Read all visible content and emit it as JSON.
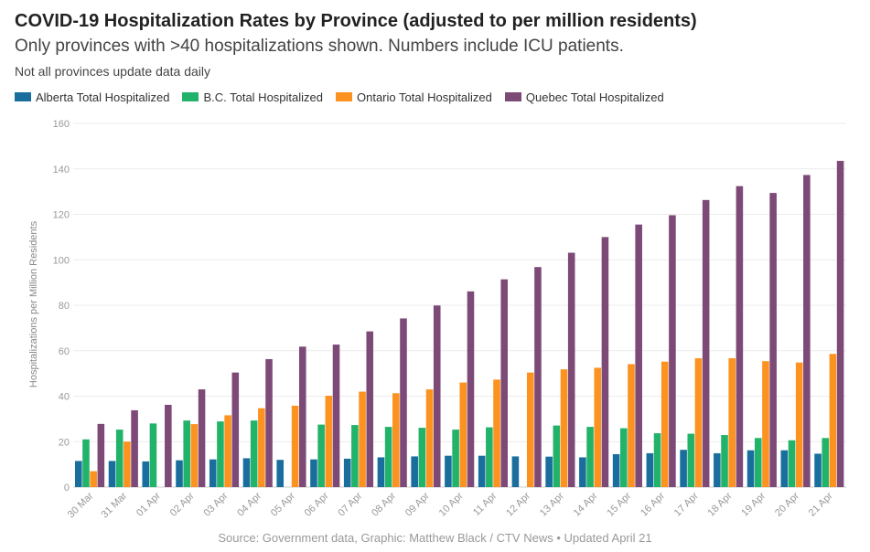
{
  "chart_data": {
    "type": "bar",
    "title": "COVID-19 Hospitalization Rates by Province (adjusted to per million residents)",
    "subtitle": "Only provinces with >40 hospitalizations shown. Numbers include ICU patients.",
    "note": "Not all provinces update data daily",
    "source": "Source: Government data, Graphic: Matthew Black / CTV News • Updated April 21",
    "xlabel": "",
    "ylabel": "Hospitalizations per Million Residents",
    "ylim": [
      0,
      160
    ],
    "yticks": [
      0,
      20,
      40,
      60,
      80,
      100,
      120,
      140,
      160
    ],
    "grid": true,
    "legend_position": "top-left",
    "categories": [
      "30 Mar",
      "31 Mar",
      "01 Apr",
      "02 Apr",
      "03 Apr",
      "04 Apr",
      "05 Apr",
      "06 Apr",
      "07 Apr",
      "08 Apr",
      "09 Apr",
      "10 Apr",
      "11 Apr",
      "12 Apr",
      "13 Apr",
      "14 Apr",
      "15 Apr",
      "16 Apr",
      "17 Apr",
      "18 Apr",
      "19 Apr",
      "20 Apr",
      "21 Apr"
    ],
    "series": [
      {
        "name": "Alberta Total Hospitalized",
        "color": "#1a6e9e",
        "values": [
          11.5,
          11.5,
          11.3,
          11.8,
          12.2,
          12.7,
          12.0,
          12.2,
          12.5,
          13.1,
          13.5,
          13.8,
          13.8,
          13.5,
          13.4,
          13.1,
          14.5,
          14.9,
          16.4,
          14.9,
          16.2,
          16.2,
          14.7
        ]
      },
      {
        "name": "B.C. Total Hospitalized",
        "color": "#22b36b",
        "values": [
          21.0,
          25.3,
          28.0,
          29.3,
          28.9,
          29.3,
          null,
          27.5,
          27.3,
          26.5,
          26.1,
          25.3,
          26.3,
          null,
          27.1,
          26.5,
          25.9,
          23.7,
          23.5,
          22.9,
          21.6,
          20.6,
          21.6
        ]
      },
      {
        "name": "Ontario Total Hospitalized",
        "color": "#fc9220",
        "values": [
          7.0,
          20.0,
          null,
          27.7,
          31.6,
          34.7,
          35.8,
          40.2,
          42.0,
          41.3,
          43.0,
          46.0,
          47.3,
          50.4,
          51.8,
          52.5,
          54.1,
          55.2,
          56.7,
          56.7,
          55.4,
          54.8,
          58.6
        ]
      },
      {
        "name": "Quebec Total Hospitalized",
        "color": "#7d4a78",
        "values": [
          27.8,
          33.8,
          36.2,
          43.0,
          50.4,
          56.3,
          61.8,
          62.7,
          68.5,
          74.2,
          79.9,
          86.1,
          91.4,
          96.8,
          103.1,
          110.0,
          115.5,
          119.6,
          126.3,
          132.4,
          129.4,
          137.3,
          143.5
        ]
      }
    ]
  }
}
